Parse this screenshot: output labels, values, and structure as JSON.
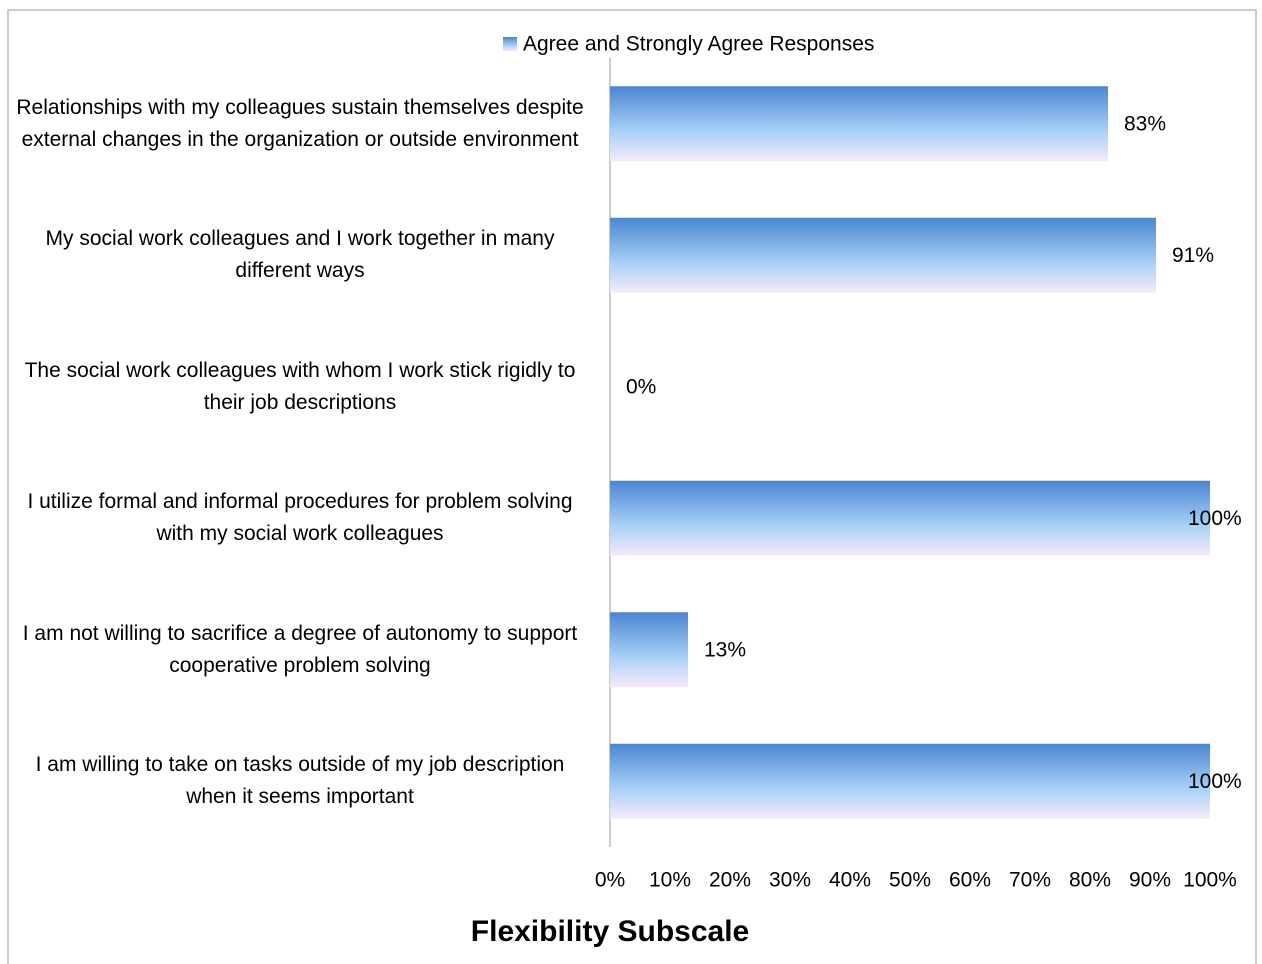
{
  "chart_data": {
    "type": "barh",
    "xlabel": "Flexibility Subscale",
    "categories": [
      "Relationships with my colleagues sustain themselves despite external changes in the organization or outside environment",
      "My social work colleagues and I work together in many different ways",
      "The social work colleagues with whom I work stick rigidly to their job descriptions",
      "I utilize formal and informal procedures for problem solving with my social work colleagues",
      "I am not willing to sacrifice a degree of autonomy to support cooperative problem solving",
      "I am willing to take on tasks outside of my job description when it seems important"
    ],
    "series": [
      {
        "name": "Agree and Strongly Agree Responses",
        "color": "#4a86d0",
        "values": [
          83,
          91,
          0,
          100,
          13,
          100
        ],
        "value_labels": [
          "83%",
          "91%",
          "0%",
          "100%",
          "13%",
          "100%"
        ]
      }
    ],
    "xlim": [
      0,
      100
    ],
    "xticks": [
      {
        "value": 0,
        "label": "0%"
      },
      {
        "value": 10,
        "label": "10%"
      },
      {
        "value": 20,
        "label": "20%"
      },
      {
        "value": 30,
        "label": "30%"
      },
      {
        "value": 40,
        "label": "40%"
      },
      {
        "value": 50,
        "label": "50%"
      },
      {
        "value": 60,
        "label": "60%"
      },
      {
        "value": 70,
        "label": "70%"
      },
      {
        "value": 80,
        "label": "80%"
      },
      {
        "value": 90,
        "label": "90%"
      },
      {
        "value": 100,
        "label": "100%"
      }
    ],
    "grid": false,
    "legend": "top"
  }
}
